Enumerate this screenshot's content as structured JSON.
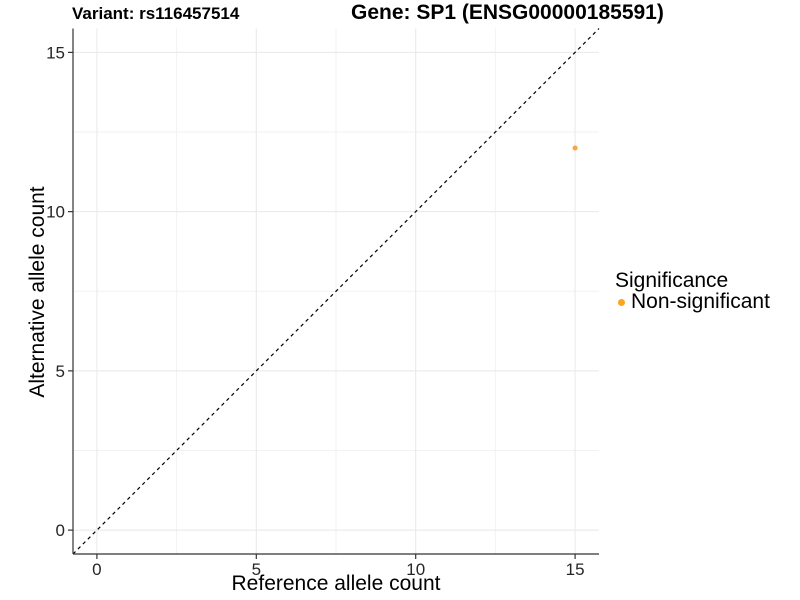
{
  "chart_data": {
    "type": "scatter",
    "titles": {
      "left": "Variant: rs116457514",
      "right": "Gene: SP1 (ENSG00000185591)"
    },
    "xlabel": "Reference allele count",
    "ylabel": "Alternative allele count",
    "xlim": [
      -0.75,
      15.75
    ],
    "ylim": [
      -0.75,
      15.75
    ],
    "x_ticks": [
      0,
      5,
      10,
      15
    ],
    "y_ticks": [
      0,
      5,
      10,
      15
    ],
    "x_minor_ticks": [
      2.5,
      7.5,
      12.5
    ],
    "y_minor_ticks": [
      2.5,
      7.5,
      12.5
    ],
    "grid": "major and minor, light gray, white panel background",
    "points": [
      {
        "x": 15,
        "y": 12,
        "series": "Non-significant"
      }
    ],
    "reference_line": {
      "slope": 1,
      "intercept": 0,
      "style": "dashed",
      "color": "#000000"
    },
    "legend": {
      "title": "Significance",
      "position": "right",
      "entries": [
        {
          "label": "Non-significant",
          "marker": "circle",
          "color": "#FFA319"
        }
      ]
    },
    "colors": {
      "point": "#F9A64B",
      "grid_major": "#E8E8E8",
      "grid_minor": "#F2F2F2",
      "axis": "#333333",
      "background": "#FFFFFF"
    }
  }
}
